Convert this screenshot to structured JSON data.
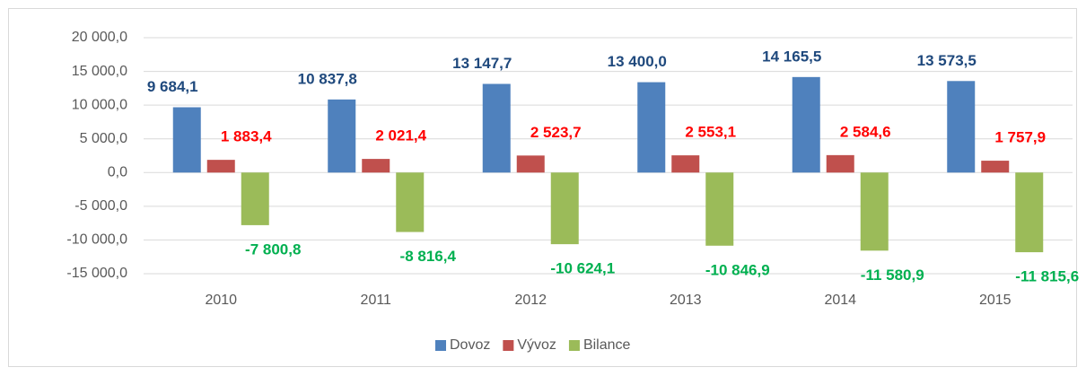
{
  "chart_data": {
    "type": "bar",
    "categories": [
      "2010",
      "2011",
      "2012",
      "2013",
      "2014",
      "2015"
    ],
    "series": [
      {
        "name": "Dovoz",
        "color": "#4f81bd",
        "label_color": "#1f497d",
        "values": [
          9684.1,
          10837.8,
          13147.7,
          13400.0,
          14165.5,
          13573.5
        ],
        "value_labels": [
          "9 684,1",
          "10 837,8",
          "13 147,7",
          "13 400,0",
          "14 165,5",
          "13 573,5"
        ]
      },
      {
        "name": "Vývoz",
        "color": "#c0504d",
        "label_color": "#ff0000",
        "values": [
          1883.4,
          2021.4,
          2523.7,
          2553.1,
          2584.6,
          1757.9
        ],
        "value_labels": [
          "1 883,4",
          "2 021,4",
          "2 523,7",
          "2 553,1",
          "2 584,6",
          "1 757,9"
        ]
      },
      {
        "name": "Bilance",
        "color": "#9bbb59",
        "label_color": "#00b050",
        "values": [
          -7800.8,
          -8816.4,
          -10624.1,
          -10846.9,
          -11580.9,
          -11815.6
        ],
        "value_labels": [
          "-7 800,8",
          "-8 816,4",
          "-10 624,1",
          "-10 846,9",
          "-11 580,9",
          "-11 815,6"
        ]
      }
    ],
    "ylim": [
      -15000,
      20000
    ],
    "yticks": [
      {
        "value": -15000,
        "label": "-15 000,0"
      },
      {
        "value": -10000,
        "label": "-10 000,0"
      },
      {
        "value": -5000,
        "label": "-5 000,0"
      },
      {
        "value": 0,
        "label": "0,0"
      },
      {
        "value": 5000,
        "label": "5 000,0"
      },
      {
        "value": 10000,
        "label": "10 000,0"
      },
      {
        "value": 15000,
        "label": "15 000,0"
      },
      {
        "value": 20000,
        "label": "20 000,0"
      }
    ],
    "grid": true,
    "legend": "bottom"
  }
}
